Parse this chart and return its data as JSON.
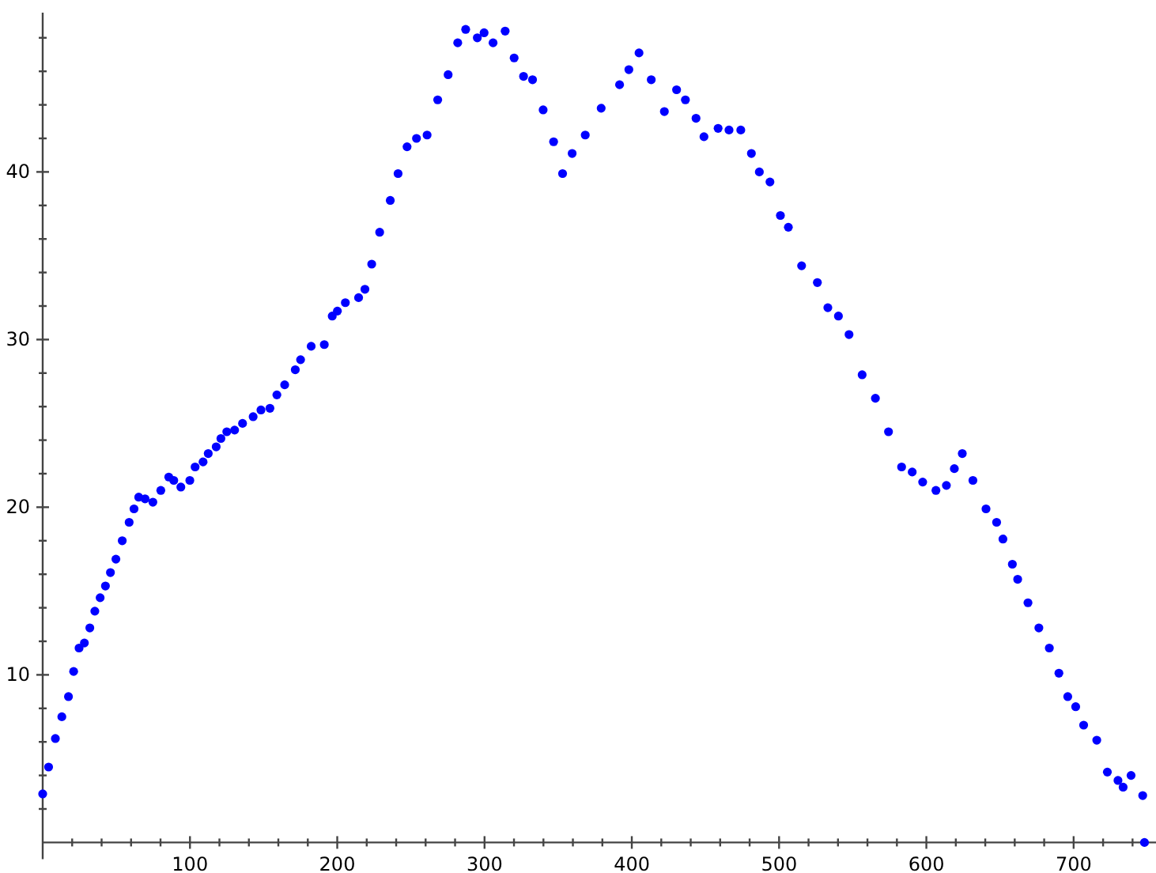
{
  "chart_data": {
    "type": "scatter",
    "marker": "circle",
    "xlim": [
      0,
      757
    ],
    "ylim": [
      -1,
      49.5
    ],
    "xticks": [
      {
        "value": 20,
        "label": null
      },
      {
        "value": 40,
        "label": null
      },
      {
        "value": 60,
        "label": null
      },
      {
        "value": 80,
        "label": null
      },
      100,
      {
        "value": 120,
        "label": null
      },
      {
        "value": 140,
        "label": null
      },
      {
        "value": 160,
        "label": null
      },
      {
        "value": 180,
        "label": null
      },
      200,
      {
        "value": 220,
        "label": null
      },
      {
        "value": 240,
        "label": null
      },
      {
        "value": 260,
        "label": null
      },
      {
        "value": 280,
        "label": null
      },
      300,
      {
        "value": 320,
        "label": null
      },
      {
        "value": 340,
        "label": null
      },
      {
        "value": 360,
        "label": null
      },
      {
        "value": 380,
        "label": null
      },
      400,
      {
        "value": 420,
        "label": null
      },
      {
        "value": 440,
        "label": null
      },
      {
        "value": 460,
        "label": null
      },
      {
        "value": 480,
        "label": null
      },
      500,
      {
        "value": 520,
        "label": null
      },
      {
        "value": 540,
        "label": null
      },
      {
        "value": 560,
        "label": null
      },
      {
        "value": 580,
        "label": null
      },
      600,
      {
        "value": 620,
        "label": null
      },
      {
        "value": 640,
        "label": null
      },
      {
        "value": 660,
        "label": null
      },
      {
        "value": 680,
        "label": null
      },
      700,
      {
        "value": 720,
        "label": null
      },
      {
        "value": 740,
        "label": null
      }
    ],
    "yticks": [
      {
        "value": 2,
        "label": null
      },
      {
        "value": 4,
        "label": null
      },
      {
        "value": 6,
        "label": null
      },
      {
        "value": 8,
        "label": null
      },
      10,
      {
        "value": 12,
        "label": null
      },
      {
        "value": 14,
        "label": null
      },
      {
        "value": 16,
        "label": null
      },
      {
        "value": 18,
        "label": null
      },
      20,
      {
        "value": 22,
        "label": null
      },
      {
        "value": 24,
        "label": null
      },
      {
        "value": 26,
        "label": null
      },
      {
        "value": 28,
        "label": null
      },
      30,
      {
        "value": 32,
        "label": null
      },
      {
        "value": 34,
        "label": null
      },
      {
        "value": 36,
        "label": null
      },
      {
        "value": 38,
        "label": null
      },
      40,
      {
        "value": 42,
        "label": null
      },
      {
        "value": 44,
        "label": null
      },
      {
        "value": 46,
        "label": null
      },
      {
        "value": 48,
        "label": null
      }
    ],
    "series": [
      {
        "color": "#0000ff",
        "x": [
          0,
          4,
          8.6,
          13,
          17.5,
          21,
          24.7,
          28.3,
          32,
          35.4,
          39,
          42.6,
          46,
          49.7,
          54,
          58.7,
          62,
          65.2,
          69.5,
          74.8,
          80.2,
          85.6,
          89,
          93.8,
          99.9,
          103.5,
          108.9,
          112.4,
          117.8,
          121,
          125,
          130.3,
          135.7,
          142.9,
          148.2,
          154.3,
          159,
          164.3,
          171.5,
          175.1,
          182.3,
          191.2,
          196.6,
          200.1,
          205.5,
          214.5,
          218.8,
          223.4,
          228.8,
          236,
          241.3,
          247.4,
          253.8,
          261,
          268.2,
          275.3,
          281.8,
          287.2,
          295.1,
          299.7,
          305.8,
          314,
          320.1,
          326.5,
          332.6,
          339.8,
          346.9,
          353,
          359.5,
          368.4,
          379.2,
          391.7,
          398,
          404.9,
          413.2,
          422.1,
          430.4,
          436.4,
          443.6,
          449,
          458.6,
          466,
          474,
          481.2,
          486.6,
          493.8,
          500.9,
          506.3,
          515.3,
          526,
          533.1,
          540.3,
          547.5,
          556.4,
          565.4,
          574.3,
          583.2,
          590.4,
          597.5,
          606.5,
          613.6,
          619,
          624.4,
          631.6,
          640.5,
          647.7,
          652,
          658.4,
          662,
          669,
          676.4,
          683.5,
          690,
          696,
          701.4,
          706.8,
          715.7,
          722.9,
          730.1,
          733.6,
          739,
          746.9,
          748.1
        ],
        "values": [
          2.9,
          4.5,
          6.2,
          7.5,
          8.7,
          10.2,
          11.6,
          11.9,
          12.8,
          13.8,
          14.6,
          15.3,
          16.1,
          16.9,
          18,
          19.1,
          19.9,
          20.6,
          20.5,
          20.3,
          21,
          21.8,
          21.6,
          21.2,
          21.6,
          22.4,
          22.7,
          23.2,
          23.6,
          24.1,
          24.5,
          24.6,
          25,
          25.4,
          25.8,
          25.9,
          26.7,
          27.3,
          28.2,
          28.8,
          29.6,
          29.7,
          31.4,
          31.7,
          32.2,
          32.5,
          33,
          34.5,
          36.4,
          38.3,
          39.9,
          41.5,
          42,
          42.2,
          44.3,
          45.8,
          47.7,
          48.5,
          48,
          48.3,
          47.7,
          48.4,
          46.8,
          45.7,
          45.5,
          43.7,
          41.8,
          39.9,
          41.1,
          42.2,
          43.8,
          45.2,
          46.1,
          47.1,
          45.5,
          43.6,
          44.9,
          44.3,
          43.2,
          42.1,
          42.6,
          42.5,
          42.5,
          41.1,
          40,
          39.4,
          37.4,
          36.7,
          34.4,
          33.4,
          31.9,
          31.4,
          30.3,
          27.9,
          26.5,
          24.5,
          22.4,
          22.1,
          21.5,
          21,
          21.3,
          22.3,
          23.2,
          21.6,
          19.9,
          19.1,
          18.1,
          16.6,
          15.7,
          14.3,
          12.8,
          11.6,
          10.1,
          8.7,
          8.1,
          7,
          6.1,
          4.2,
          3.7,
          3.3,
          4,
          2.8,
          0
        ]
      }
    ]
  }
}
